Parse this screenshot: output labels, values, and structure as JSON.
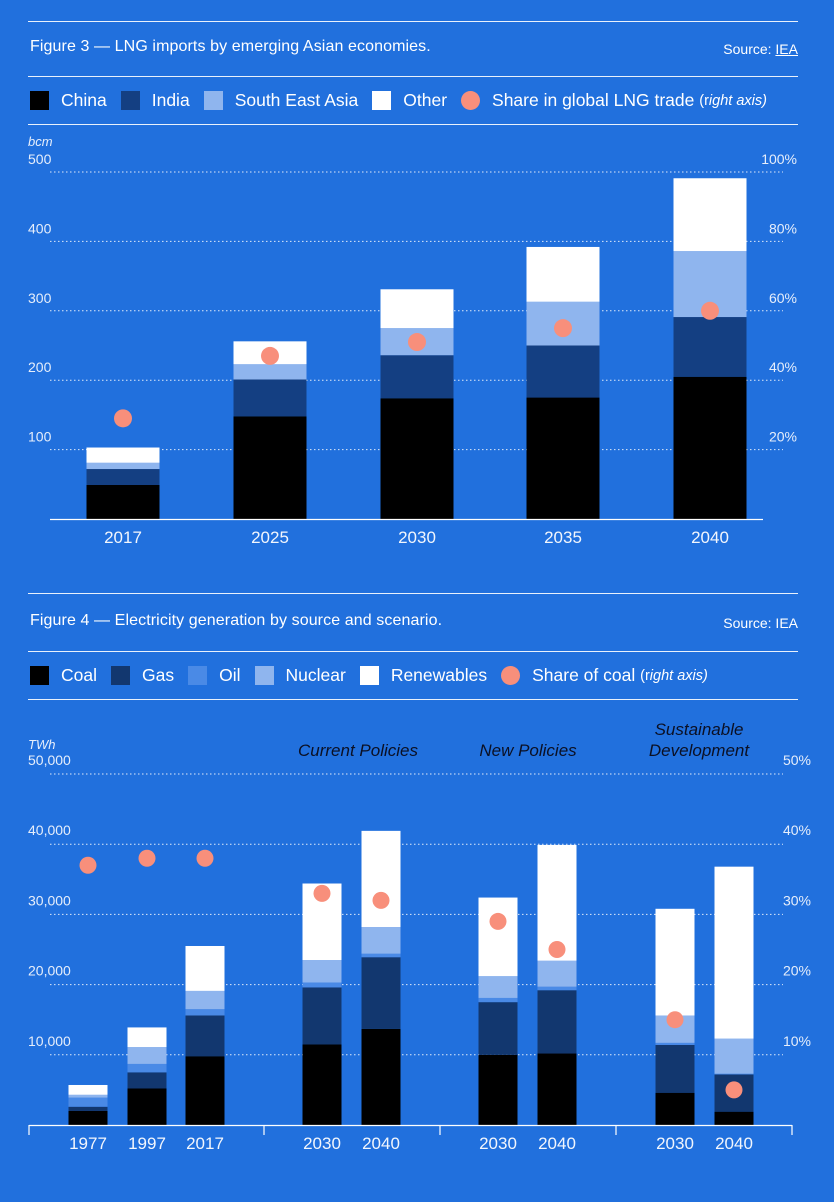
{
  "colors": {
    "background": "#2170dd",
    "black": "#000000",
    "dark_blue": "#143f82",
    "mid_blue": "#4a8ae6",
    "light_blue": "#8fb5ee",
    "white": "#ffffff",
    "salmon": "#f88f7b"
  },
  "figure3": {
    "title": "Figure 3 — LNG imports by emerging Asian economies.",
    "source_label": "Source:",
    "source_link": "IEA",
    "legend": [
      {
        "label": "China",
        "color": "#000000"
      },
      {
        "label": "India",
        "color": "#143f82"
      },
      {
        "label": "South East Asia",
        "color": "#8fb5ee"
      },
      {
        "label": "Other",
        "color": "#ffffff"
      },
      {
        "label": "Share in global LNG trade",
        "color": "#f88f7b",
        "marker": "dot"
      }
    ],
    "legend_note_prefix": "(r",
    "legend_note_italic": "ight axis)"
  },
  "figure4": {
    "title": "Figure 4 — Electricity generation by source and scenario.",
    "source_label": "Source: IEA",
    "legend": [
      {
        "label": "Coal",
        "color": "#000000"
      },
      {
        "label": "Gas",
        "color": "#12376f"
      },
      {
        "label": "Oil",
        "color": "#4a8ae6"
      },
      {
        "label": "Nuclear",
        "color": "#8fb5ee"
      },
      {
        "label": "Renewables",
        "color": "#ffffff"
      },
      {
        "label": "Share of coal",
        "color": "#f88f7b",
        "marker": "dot"
      }
    ],
    "legend_note_prefix": "(r",
    "legend_note_italic": "ight axis)"
  },
  "chart_data": [
    {
      "type": "bar",
      "stacked": true,
      "title": "Figure 3 — LNG imports by emerging Asian economies.",
      "ylabel": "bcm",
      "y2label": "Share in global LNG trade",
      "ylim": [
        0,
        500
      ],
      "yticks": [
        100,
        200,
        300,
        400,
        500
      ],
      "ytick_labels": [
        "100",
        "200",
        "300",
        "400",
        "500"
      ],
      "y2lim": [
        0,
        100
      ],
      "y2ticks": [
        20,
        40,
        60,
        80,
        100
      ],
      "y2tick_labels": [
        "20%",
        "40%",
        "60%",
        "80%",
        "100%"
      ],
      "grid": true,
      "categories": [
        "2017",
        "2025",
        "2030",
        "2035",
        "2040"
      ],
      "series": [
        {
          "name": "China",
          "color": "#000000",
          "values": [
            49,
            148,
            174,
            175,
            205
          ]
        },
        {
          "name": "India",
          "color": "#143f82",
          "values": [
            23,
            53,
            62,
            75,
            86
          ]
        },
        {
          "name": "South East Asia",
          "color": "#8fb5ee",
          "values": [
            9,
            22,
            39,
            63,
            95
          ]
        },
        {
          "name": "Other",
          "color": "#ffffff",
          "values": [
            22,
            33,
            56,
            79,
            105
          ]
        }
      ],
      "line_series": [
        {
          "name": "Share in global LNG trade",
          "axis": "right",
          "marker": "dot",
          "color": "#f88f7b",
          "values": [
            29,
            47,
            51,
            55,
            60
          ]
        }
      ],
      "legend_position": "top"
    },
    {
      "type": "bar",
      "stacked": true,
      "title": "Figure 4 — Electricity generation by source and scenario.",
      "ylabel": "TWh",
      "y2label": "Share of coal",
      "ylim": [
        0,
        50000
      ],
      "yticks": [
        10000,
        20000,
        30000,
        40000,
        50000
      ],
      "ytick_labels": [
        "10,000",
        "20,000",
        "30,000",
        "40,000",
        "50,000"
      ],
      "y2lim": [
        0,
        50
      ],
      "y2ticks": [
        10,
        20,
        30,
        40,
        50
      ],
      "y2tick_labels": [
        "10%",
        "20%",
        "30%",
        "40%",
        "50%"
      ],
      "grid": true,
      "groups": [
        {
          "label": "",
          "categories": [
            "1977",
            "1997",
            "2017"
          ]
        },
        {
          "label": "Current Policies",
          "categories": [
            "2030",
            "2040"
          ]
        },
        {
          "label": "New Policies",
          "categories": [
            "2030",
            "2040"
          ]
        },
        {
          "label_line1": "Sustainable",
          "label_line2": "Development",
          "label": "Sustainable Development",
          "categories": [
            "2030",
            "2040"
          ]
        }
      ],
      "categories": [
        "1977",
        "1997",
        "2017",
        "2030",
        "2040",
        "2030",
        "2040",
        "2030",
        "2040"
      ],
      "series": [
        {
          "name": "Coal",
          "color": "#000000",
          "values": [
            2000,
            5200,
            9800,
            11500,
            13700,
            10000,
            10200,
            4600,
            1900
          ]
        },
        {
          "name": "Gas",
          "color": "#12376f",
          "values": [
            600,
            2300,
            5800,
            8100,
            10200,
            7500,
            9000,
            6800,
            5300
          ]
        },
        {
          "name": "Oil",
          "color": "#4a8ae6",
          "values": [
            1300,
            1200,
            900,
            700,
            500,
            600,
            500,
            300,
            100
          ]
        },
        {
          "name": "Nuclear",
          "color": "#8fb5ee",
          "values": [
            400,
            2400,
            2600,
            3200,
            3800,
            3100,
            3700,
            3900,
            5000
          ]
        },
        {
          "name": "Renewables",
          "color": "#ffffff",
          "values": [
            1400,
            2800,
            6400,
            10900,
            13700,
            11200,
            16500,
            15200,
            24500
          ]
        }
      ],
      "line_series": [
        {
          "name": "Share of coal",
          "axis": "right",
          "marker": "dot",
          "color": "#f88f7b",
          "values": [
            37,
            38,
            38,
            33,
            32,
            29,
            25,
            15,
            5
          ]
        }
      ],
      "legend_position": "top"
    }
  ]
}
